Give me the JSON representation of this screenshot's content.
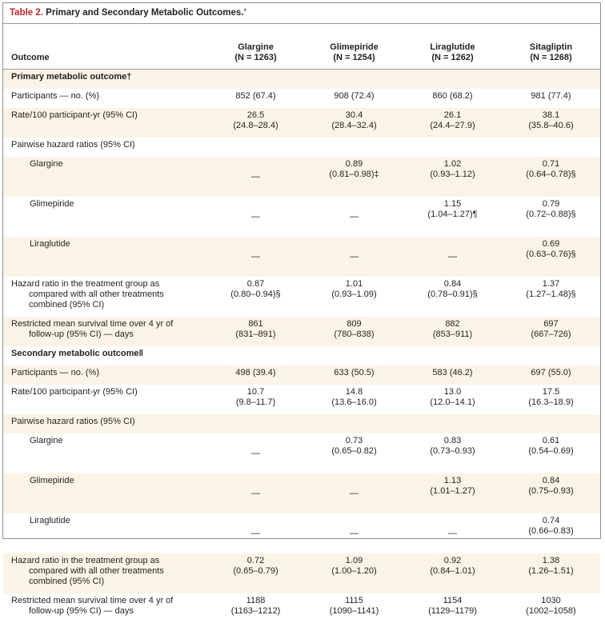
{
  "table": {
    "label": "Table 2.",
    "title": "Primary and Secondary Metabolic Outcomes.",
    "title_mark": "*",
    "columns": {
      "outcome": "Outcome",
      "glargine": {
        "name": "Glargine",
        "n": "(N = 1263)"
      },
      "glimepiride": {
        "name": "Glimepiride",
        "n": "(N = 1254)"
      },
      "liraglutide": {
        "name": "Liraglutide",
        "n": "(N = 1262)"
      },
      "sitagliptin": {
        "name": "Sitagliptin",
        "n": "(N = 1268)"
      }
    },
    "primary": {
      "heading": "Primary metabolic outcome†",
      "participants": {
        "label": "Participants — no. (%)",
        "values": [
          "852 (67.4)",
          "908 (72.4)",
          "860 (68.2)",
          "981 (77.4)"
        ]
      },
      "rate": {
        "label": "Rate/100 participant-yr (95% CI)",
        "values": [
          "26.5",
          "30.4",
          "26.1",
          "38.1"
        ],
        "ci": [
          "(24.8–28.4)",
          "(28.4–32.4)",
          "(24.4–27.9)",
          "(35.8–40.6)"
        ]
      },
      "pairwise_label": "Pairwise hazard ratios (95% CI)",
      "glargine": {
        "label": "Glargine",
        "values": [
          "—",
          "0.89",
          "1.02",
          "0.71"
        ],
        "ci": [
          "",
          "(0.81–0.98)‡",
          "(0.93–1.12)",
          "(0.64–0.78)§"
        ]
      },
      "glimepiride": {
        "label": "Glimepiride",
        "values": [
          "—",
          "—",
          "1.15",
          "0.79"
        ],
        "ci": [
          "",
          "",
          "(1.04–1.27)¶",
          "(0.72–0.88)§"
        ]
      },
      "liraglutide": {
        "label": "Liraglutide",
        "values": [
          "—",
          "—",
          "—",
          "0.69"
        ],
        "ci": [
          "",
          "",
          "",
          "(0.63–0.76)§"
        ]
      },
      "hazard": {
        "label1": "Hazard ratio in the treatment group as",
        "label2": "compared with all other treatments",
        "label3": "combined (95% CI)",
        "values": [
          "0.87",
          "1.01",
          "0.84",
          "1.37"
        ],
        "ci": [
          "(0.80–0.94)§",
          "(0.93–1.09)",
          "(0.78–0.91)§",
          "(1.27–1.48)§"
        ]
      },
      "survival": {
        "label1": "Restricted mean survival time over 4 yr of",
        "label2": "follow-up (95% CI) — days",
        "values": [
          "861",
          "809",
          "882",
          "697"
        ],
        "ci": [
          "(831–891)",
          "(780–838)",
          "(853–911)",
          "(667–726)"
        ]
      }
    },
    "secondary": {
      "heading": "Secondary metabolic outcome‖",
      "participants": {
        "label": "Participants — no. (%)",
        "values": [
          "498 (39.4)",
          "633 (50.5)",
          "583 (46.2)",
          "697 (55.0)"
        ]
      },
      "rate": {
        "label": "Rate/100 participant-yr (95% CI)",
        "values": [
          "10.7",
          "14.8",
          "13.0",
          "17.5"
        ],
        "ci": [
          "(9.8–11.7)",
          "(13.6–16.0)",
          "(12.0–14.1)",
          "(16.3–18.9)"
        ]
      },
      "pairwise_label": "Pairwise hazard ratios (95% CI)",
      "glargine": {
        "label": "Glargine",
        "values": [
          "—",
          "0.73",
          "0.83",
          "0.61"
        ],
        "ci": [
          "",
          "(0.65–0.82)",
          "(0.73–0.93)",
          "(0.54–0.69)"
        ]
      },
      "glimepiride": {
        "label": "Glimepiride",
        "values": [
          "—",
          "—",
          "1.13",
          "0.84"
        ],
        "ci": [
          "",
          "",
          "(1.01–1.27)",
          "(0.75–0.93)"
        ]
      },
      "liraglutide": {
        "label": "Liraglutide",
        "values": [
          "—",
          "—",
          "—",
          "0.74"
        ],
        "ci": [
          "",
          "",
          "",
          "(0.66–0.83)"
        ]
      },
      "hazard": {
        "label1": "Hazard ratio in the treatment group as",
        "label2": "compared with all other treatments",
        "label3": "combined (95% CI)",
        "values": [
          "0.72",
          "1.09",
          "0.92",
          "1.38"
        ],
        "ci": [
          "(0.65–0.79)",
          "(1.00–1.20)",
          "(0.84–1.01)",
          "(1.26–1.51)"
        ]
      },
      "survival": {
        "label1": "Restricted mean survival time over 4 yr of",
        "label2": "follow-up (95% CI) — days",
        "values": [
          "1188",
          "1115",
          "1154",
          "1030"
        ],
        "ci": [
          "(1163–1212)",
          "(1090–1141)",
          "(1129–1179)",
          "(1002–1058)"
        ]
      }
    }
  }
}
